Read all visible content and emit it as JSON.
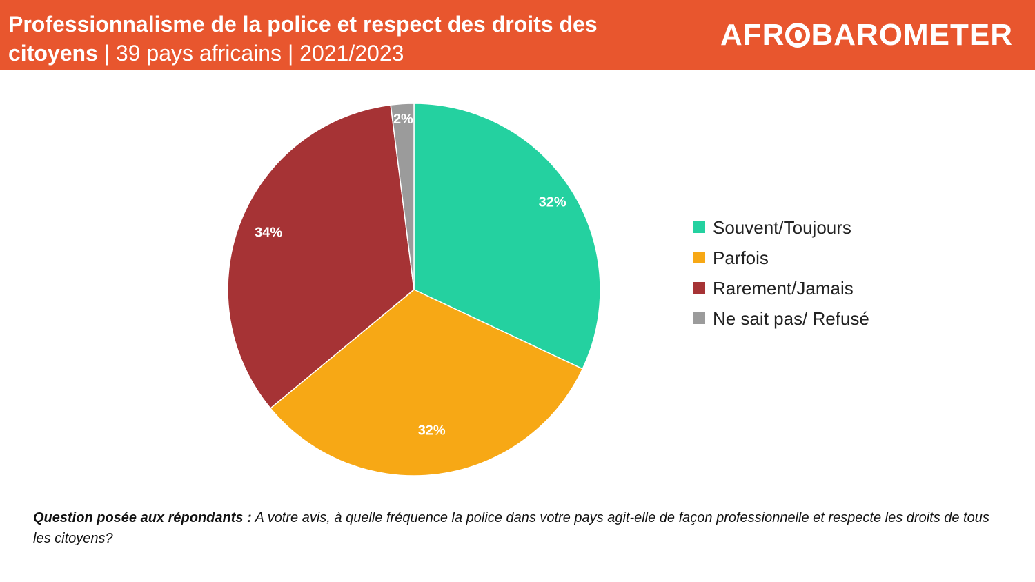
{
  "header": {
    "title_bold": "Professionnalisme de la police et respect des droits des citoyens",
    "title_rest": " | 39 pays africains | 2021/2023",
    "logo_left": "AFR",
    "logo_right": "BAROMETER"
  },
  "chart_data": {
    "type": "pie",
    "slices": [
      {
        "label": "Souvent/Toujours",
        "value": 32,
        "display": "32%",
        "color": "#24d1a0"
      },
      {
        "label": "Parfois",
        "value": 32,
        "display": "32%",
        "color": "#f7a815"
      },
      {
        "label": "Rarement/Jamais",
        "value": 34,
        "display": "34%",
        "color": "#a63335"
      },
      {
        "label": "Ne sait pas/ Refusé",
        "value": 2,
        "display": "2%",
        "color": "#9b9b9b"
      }
    ],
    "legend_position": "right"
  },
  "legend": {
    "items": [
      {
        "label": "Souvent/Toujours"
      },
      {
        "label": "Parfois"
      },
      {
        "label": "Rarement/Jamais"
      },
      {
        "label": "Ne sait pas/ Refusé"
      }
    ]
  },
  "footer": {
    "question_label": "Question posée aux répondants :",
    "question_text": " A votre avis, à quelle fréquence la police dans votre pays agit-elle de façon professionnelle et respecte les droits de tous les citoyens?"
  }
}
